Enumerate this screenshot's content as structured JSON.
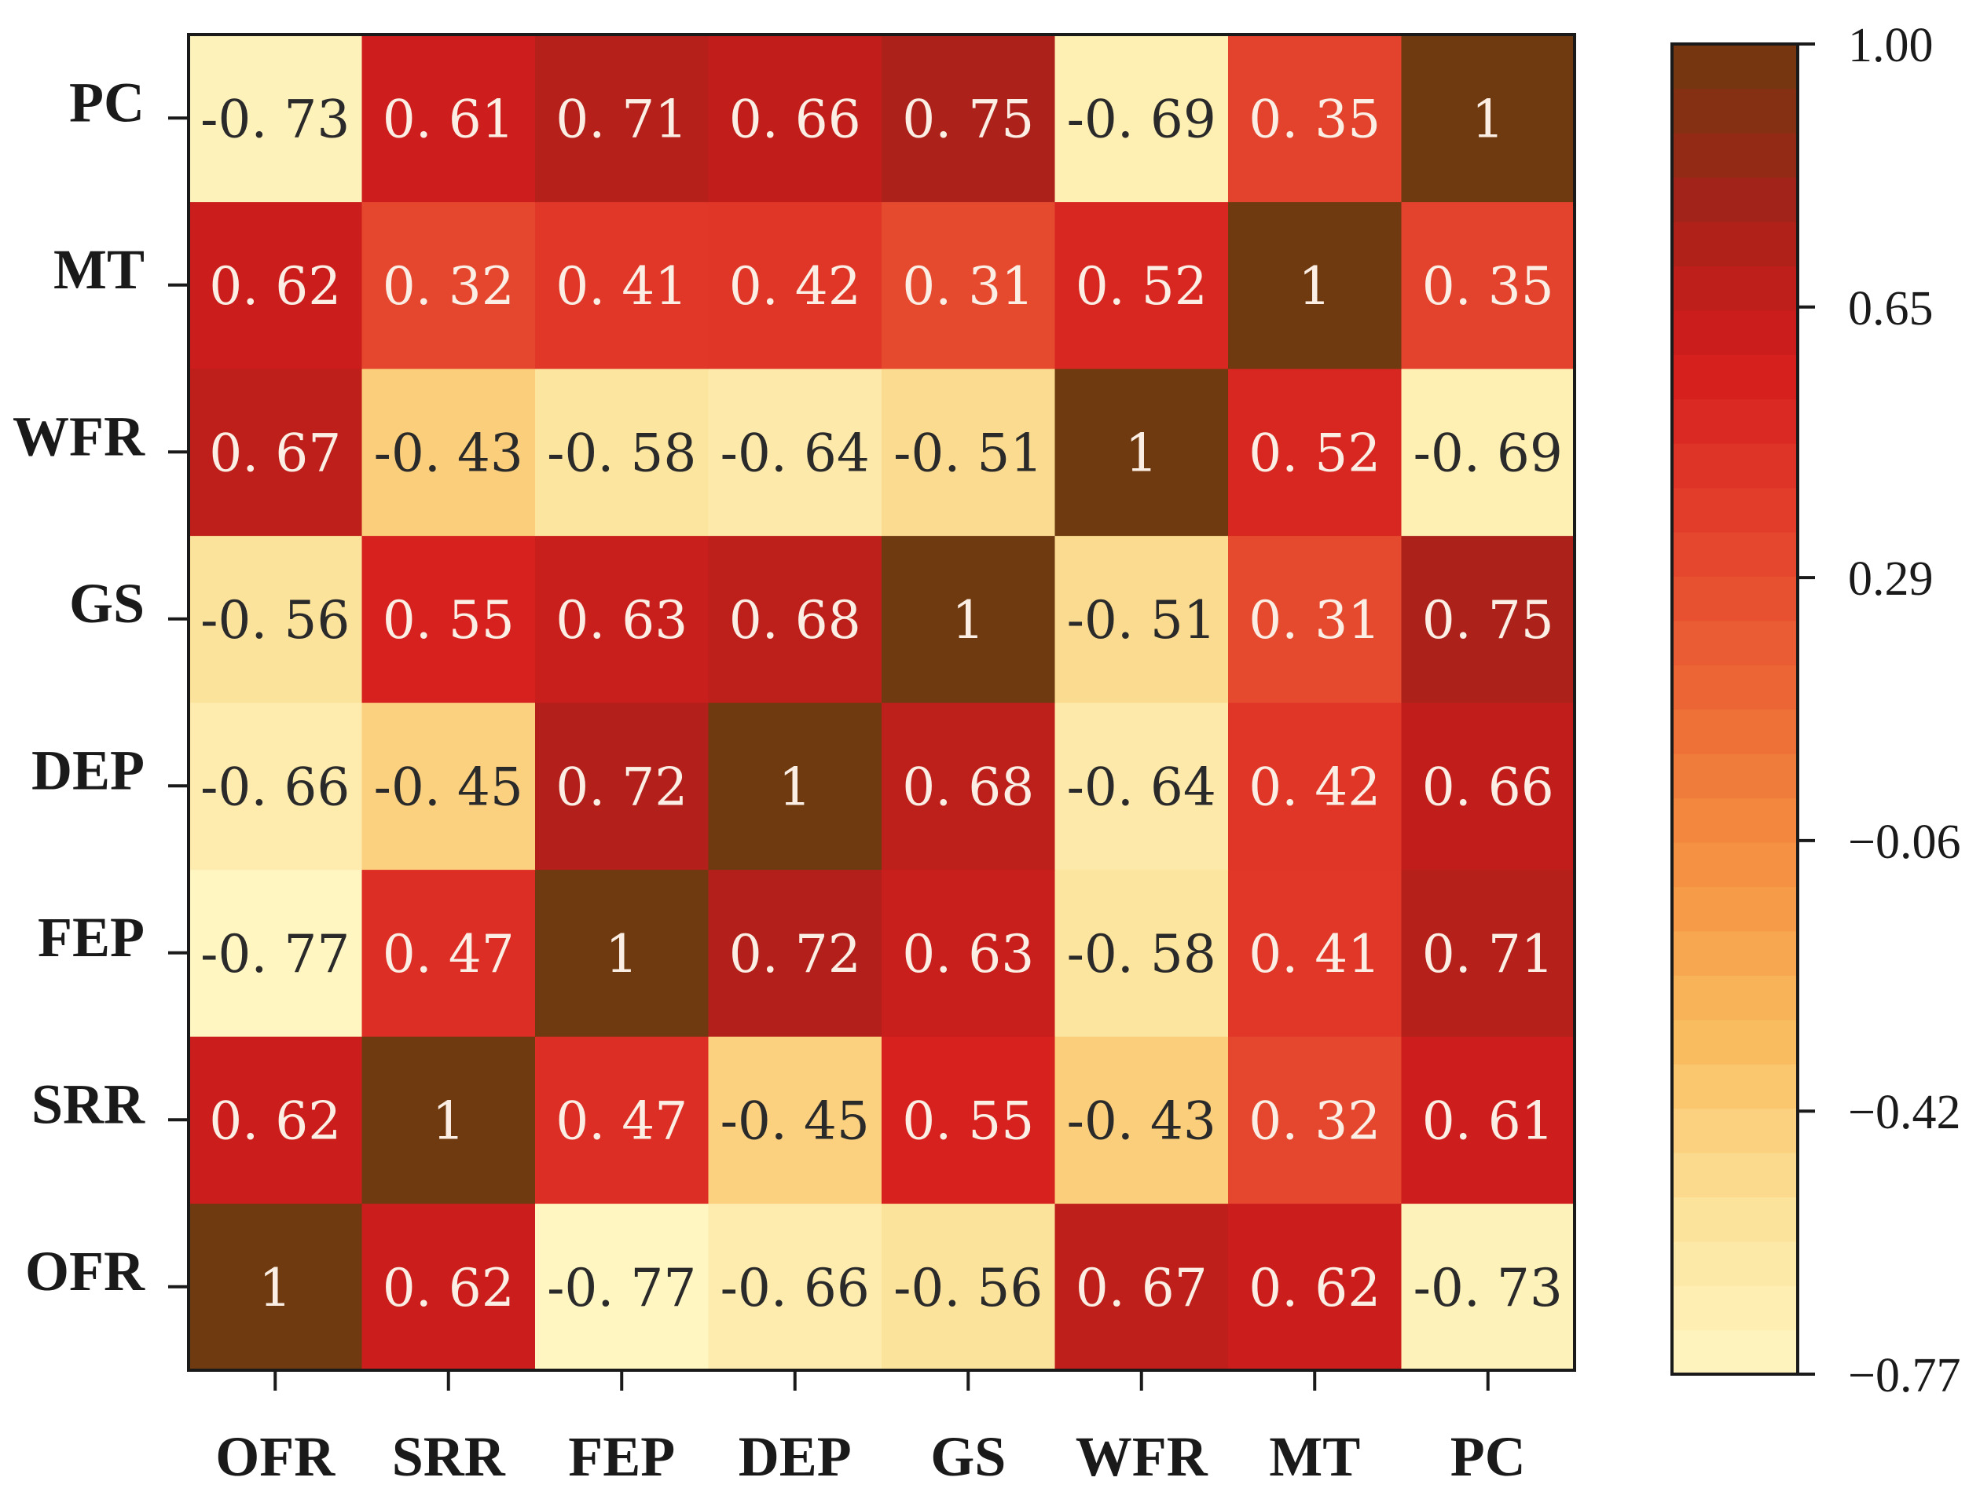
{
  "chart_data": {
    "type": "heatmap",
    "title": "",
    "xlabel": "",
    "ylabel": "",
    "x_categories": [
      "OFR",
      "SRR",
      "FEP",
      "DEP",
      "GS",
      "WFR",
      "MT",
      "PC"
    ],
    "y_categories_bottom_to_top": [
      "OFR",
      "SRR",
      "FEP",
      "DEP",
      "GS",
      "WFR",
      "MT",
      "PC"
    ],
    "matrix": [
      [
        1,
        0.62,
        -0.77,
        -0.66,
        -0.56,
        0.67,
        0.62,
        -0.73
      ],
      [
        0.62,
        1,
        0.47,
        -0.45,
        0.55,
        -0.43,
        0.32,
        0.61
      ],
      [
        -0.77,
        0.47,
        1,
        0.72,
        0.63,
        -0.58,
        0.41,
        0.71
      ],
      [
        -0.66,
        -0.45,
        0.72,
        1,
        0.68,
        -0.64,
        0.42,
        0.66
      ],
      [
        -0.56,
        0.55,
        0.63,
        0.68,
        1,
        -0.51,
        0.31,
        0.75
      ],
      [
        0.67,
        -0.43,
        -0.58,
        -0.64,
        -0.51,
        1,
        0.52,
        -0.69
      ],
      [
        0.62,
        0.32,
        0.41,
        0.42,
        0.31,
        0.52,
        1,
        0.35
      ],
      [
        -0.73,
        0.61,
        0.71,
        0.66,
        0.75,
        -0.69,
        0.35,
        1
      ]
    ],
    "cell_labels": [
      [
        "1",
        "0. 62",
        "-0. 77",
        "-0. 66",
        "-0. 56",
        "0. 67",
        "0. 62",
        "-0. 73"
      ],
      [
        "0. 62",
        "1",
        "0. 47",
        "-0. 45",
        "0. 55",
        "-0. 43",
        "0. 32",
        "0. 61"
      ],
      [
        "-0. 77",
        "0. 47",
        "1",
        "0. 72",
        "0. 63",
        "-0. 58",
        "0. 41",
        "0. 71"
      ],
      [
        "-0. 66",
        "-0. 45",
        "0. 72",
        "1",
        "0. 68",
        "-0. 64",
        "0. 42",
        "0. 66"
      ],
      [
        "-0. 56",
        "0. 55",
        "0. 63",
        "0. 68",
        "1",
        "-0. 51",
        "0. 31",
        "0. 75"
      ],
      [
        "0. 67",
        "-0. 43",
        "-0. 58",
        "-0. 64",
        "-0. 51",
        "1",
        "0. 52",
        "-0. 69"
      ],
      [
        "0. 62",
        "0. 32",
        "0. 41",
        "0. 42",
        "0. 31",
        "0. 52",
        "1",
        "0. 35"
      ],
      [
        "-0. 73",
        "0. 61",
        "0. 71",
        "0. 66",
        "0. 75",
        "-0. 69",
        "0. 35",
        "1"
      ]
    ],
    "colorbar": {
      "min": -0.77,
      "max": 1.0,
      "tick_values": [
        1.0,
        0.65,
        0.29,
        -0.06,
        -0.42,
        -0.77
      ],
      "tick_labels": [
        "1.00",
        "0.65",
        "0.29",
        "−0.06",
        "−0.42",
        "−0.77"
      ],
      "steps": 30,
      "colormap_stops": [
        {
          "value": -0.77,
          "color": "#fff6c2"
        },
        {
          "value": -0.55,
          "color": "#fce29a"
        },
        {
          "value": -0.33,
          "color": "#f9bd60"
        },
        {
          "value": -0.1,
          "color": "#f59342"
        },
        {
          "value": 0.15,
          "color": "#ec6535"
        },
        {
          "value": 0.4,
          "color": "#e1392a"
        },
        {
          "value": 0.58,
          "color": "#d41c1c"
        },
        {
          "value": 0.78,
          "color": "#a5221a"
        },
        {
          "value": 1.0,
          "color": "#6f3a0f"
        }
      ]
    },
    "legend_position": "right",
    "grid": false
  }
}
